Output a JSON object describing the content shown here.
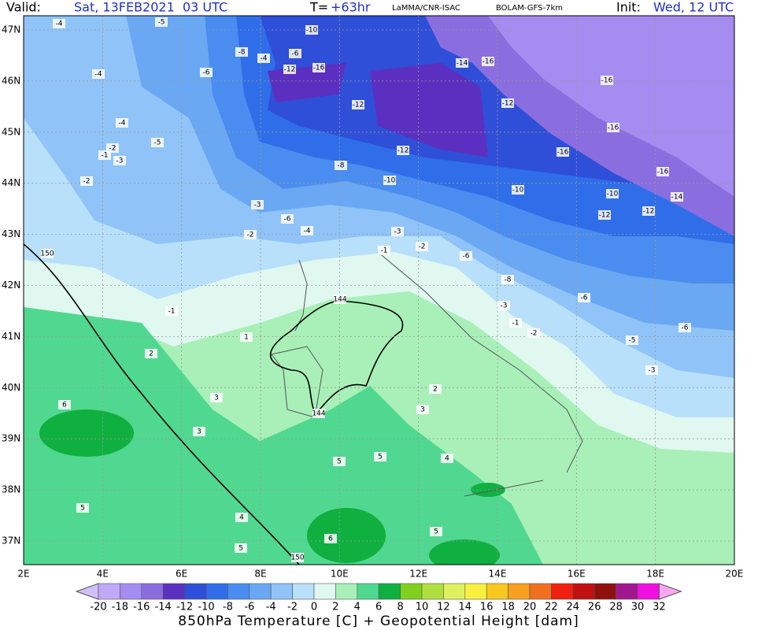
{
  "header": {
    "valid_label": "Valid:",
    "valid_time": "Sat, 13FEB2021  03 UTC",
    "lead_label": "T=",
    "lead_time": "+63hr",
    "institution": "LaMMA/CNR-ISAC",
    "model": "BOLAM-GFS-7km",
    "init_label": "Init:",
    "init_time": "Wed, 12 UTC"
  },
  "axes": {
    "lon_ticks": [
      "2E",
      "4E",
      "6E",
      "8E",
      "10E",
      "12E",
      "14E",
      "16E",
      "18E",
      "20E"
    ],
    "lat_ticks": [
      "47N",
      "46N",
      "45N",
      "44N",
      "43N",
      "42N",
      "41N",
      "40N",
      "39N",
      "38N",
      "37N"
    ]
  },
  "colorbar": {
    "labels": [
      -20,
      -18,
      -16,
      -14,
      -12,
      -10,
      -8,
      -6,
      -4,
      -2,
      0,
      2,
      4,
      6,
      8,
      10,
      12,
      14,
      16,
      18,
      20,
      22,
      24,
      26,
      28,
      30,
      32
    ],
    "colors": [
      "#c0aaf8",
      "#a58cf0",
      "#8a6ee0",
      "#5b30c0",
      "#2f4fd8",
      "#2f6ee8",
      "#4a8cf0",
      "#6aa8f4",
      "#90c4f8",
      "#b8e0fa",
      "#e0f8f0",
      "#a8f0b8",
      "#50d890",
      "#10b040",
      "#80d020",
      "#b0e040",
      "#e0f060",
      "#f8f040",
      "#f8c820",
      "#f8a020",
      "#f07020",
      "#f02010",
      "#c01010",
      "#901010",
      "#a01890",
      "#f010e0"
    ],
    "under_color": "#d0c0fa",
    "over_color": "#f8a8f0"
  },
  "contour_labels": [
    -4,
    -5,
    -4,
    -4,
    -5,
    -2,
    -1,
    -3,
    -10,
    -8,
    -4,
    -6,
    -12,
    -16,
    -6,
    -12,
    -12,
    -8,
    -10,
    -3,
    -6,
    -4,
    -2,
    -3,
    -1,
    -2,
    -6,
    -8,
    -14,
    -16,
    -12,
    -16,
    -16,
    -16,
    -16,
    -10,
    -10,
    -14,
    -12,
    -12,
    -6,
    -6,
    -3,
    -1,
    -2,
    -5,
    -3,
    -1,
    2,
    3,
    3,
    1,
    6,
    5,
    4,
    5,
    5,
    5,
    6,
    5,
    4,
    3,
    2,
    144,
    144,
    150,
    150,
    -2
  ],
  "footer_title": "850hPa Temperature [C] + Geopotential Height [dam]"
}
